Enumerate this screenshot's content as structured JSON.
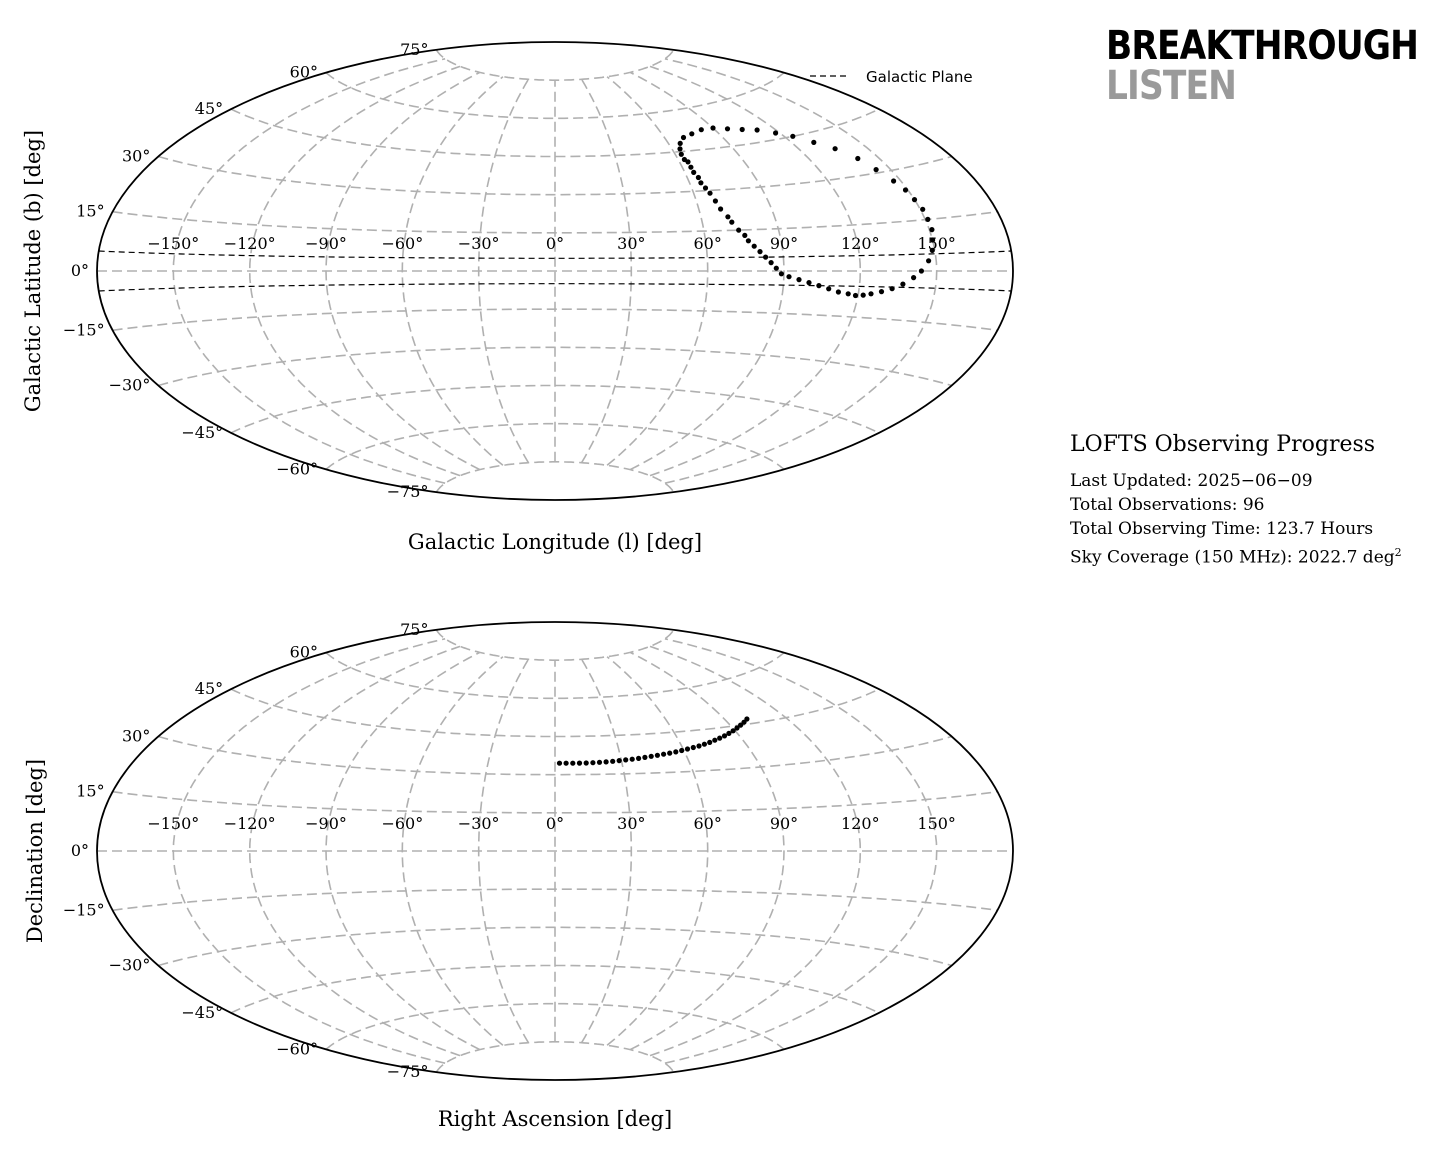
{
  "logo": {
    "line1": "BREAKTHROUGH",
    "line2": "LISTEN"
  },
  "info": {
    "title": "LOFTS Observing Progress",
    "last_updated_label": "Last Updated:",
    "last_updated": "2025−06−09",
    "total_obs_label": "Total Observations:",
    "total_obs": "96",
    "obs_time_label": "Total Observing Time:",
    "obs_time": "123.7 Hours",
    "coverage_label": "Sky Coverage (150 MHz):",
    "coverage": "2022.7 deg",
    "coverage_exp": "2"
  },
  "colors": {
    "grid": "#b0b0b0",
    "points": "#000000",
    "galactic_plane": "#000000"
  },
  "chart_data": [
    {
      "type": "scatter",
      "projection": "aitoff",
      "xlabel": "Galactic Longitude (l) [deg]",
      "ylabel": "Galactic Latitude (b) [deg]",
      "xlim": [
        -180,
        180
      ],
      "ylim": [
        -90,
        90
      ],
      "grid": true,
      "x_tick_values": [
        -150,
        -120,
        -90,
        -60,
        -30,
        0,
        30,
        60,
        90,
        120,
        150
      ],
      "x_ticks": [
        "−150°",
        "−120°",
        "−90°",
        "−60°",
        "−30°",
        "0°",
        "30°",
        "60°",
        "90°",
        "120°",
        "150°"
      ],
      "y_tick_values": [
        -75,
        -60,
        -45,
        -30,
        -15,
        0,
        15,
        30,
        45,
        60,
        75
      ],
      "y_ticks": [
        "−75°",
        "−60°",
        "−45°",
        "−30°",
        "−15°",
        "0°",
        "15°",
        "30°",
        "45°",
        "60°",
        "75°"
      ],
      "legend": {
        "label": "Galactic Plane",
        "placement": "top-right"
      },
      "galactic_plane_b": [
        -5,
        5
      ],
      "points": [
        [
          63,
          44
        ],
        [
          63,
          42
        ],
        [
          64,
          41
        ],
        [
          64,
          39
        ],
        [
          64,
          37
        ],
        [
          65,
          35
        ],
        [
          65,
          33
        ],
        [
          66,
          31
        ],
        [
          67,
          29
        ],
        [
          68,
          26
        ],
        [
          69,
          23
        ],
        [
          71,
          20
        ],
        [
          72,
          18
        ],
        [
          74,
          15
        ],
        [
          76,
          13
        ],
        [
          77,
          11
        ],
        [
          79,
          9
        ],
        [
          81,
          7
        ],
        [
          83,
          5
        ],
        [
          85,
          3
        ],
        [
          87,
          1
        ],
        [
          89,
          -1
        ],
        [
          92,
          -2
        ],
        [
          96,
          -3
        ],
        [
          100,
          -4
        ],
        [
          104,
          -5
        ],
        [
          108,
          -6
        ],
        [
          112,
          -7
        ],
        [
          116,
          -7.5
        ],
        [
          119,
          -8
        ],
        [
          122,
          -7.8
        ],
        [
          125,
          -7.3
        ],
        [
          129,
          -6.5
        ],
        [
          133,
          -5.5
        ],
        [
          137,
          -4
        ],
        [
          141,
          -2
        ],
        [
          144,
          0
        ],
        [
          147,
          3
        ],
        [
          149,
          6
        ],
        [
          150,
          9
        ],
        [
          151,
          12
        ],
        [
          151,
          15
        ],
        [
          151,
          18
        ],
        [
          150,
          21
        ],
        [
          149,
          24
        ],
        [
          147,
          27
        ],
        [
          144,
          31
        ],
        [
          141,
          35
        ],
        [
          136,
          39
        ],
        [
          130,
          42
        ],
        [
          124,
          45
        ],
        [
          118,
          47
        ],
        [
          111,
          49
        ],
        [
          104,
          50
        ],
        [
          97,
          51
        ],
        [
          90,
          52
        ],
        [
          83,
          52
        ],
        [
          76,
          51
        ],
        [
          70,
          50
        ],
        [
          66,
          48
        ],
        [
          64,
          46
        ]
      ]
    },
    {
      "type": "scatter",
      "projection": "aitoff",
      "xlabel": "Right Ascension [deg]",
      "ylabel": "Declination [deg]",
      "xlim": [
        -180,
        180
      ],
      "ylim": [
        -90,
        90
      ],
      "grid": true,
      "x_tick_values": [
        -150,
        -120,
        -90,
        -60,
        -30,
        0,
        30,
        60,
        90,
        120,
        150
      ],
      "x_ticks": [
        "−150°",
        "−120°",
        "−90°",
        "−60°",
        "−30°",
        "0°",
        "30°",
        "60°",
        "90°",
        "120°",
        "150°"
      ],
      "y_tick_values": [
        -75,
        -60,
        -45,
        -30,
        -15,
        0,
        15,
        30,
        45,
        60,
        75
      ],
      "y_ticks": [
        "−75°",
        "−60°",
        "−45°",
        "−30°",
        "−15°",
        "0°",
        "15°",
        "30°",
        "45°",
        "60°",
        "75°"
      ],
      "points": [
        [
          2,
          34.5
        ],
        [
          5,
          34.5
        ],
        [
          8,
          34.5
        ],
        [
          11,
          34.5
        ],
        [
          14,
          34.5
        ],
        [
          17,
          34.6
        ],
        [
          20,
          34.7
        ],
        [
          23,
          34.8
        ],
        [
          26,
          35
        ],
        [
          29,
          35.2
        ],
        [
          32,
          35.4
        ],
        [
          35,
          35.6
        ],
        [
          38,
          35.8
        ],
        [
          41,
          36.1
        ],
        [
          44,
          36.4
        ],
        [
          47,
          36.7
        ],
        [
          50,
          37
        ],
        [
          53,
          37.3
        ],
        [
          56,
          37.6
        ],
        [
          59,
          38
        ],
        [
          62,
          38.4
        ],
        [
          65,
          38.8
        ],
        [
          68,
          39.2
        ],
        [
          71,
          39.7
        ],
        [
          74,
          40.2
        ],
        [
          77,
          40.8
        ],
        [
          80,
          41.4
        ],
        [
          83,
          42
        ],
        [
          86,
          42.7
        ],
        [
          89,
          43.4
        ],
        [
          92,
          44.2
        ],
        [
          95,
          45
        ],
        [
          98,
          45.8
        ],
        [
          101,
          46.7
        ]
      ]
    }
  ]
}
